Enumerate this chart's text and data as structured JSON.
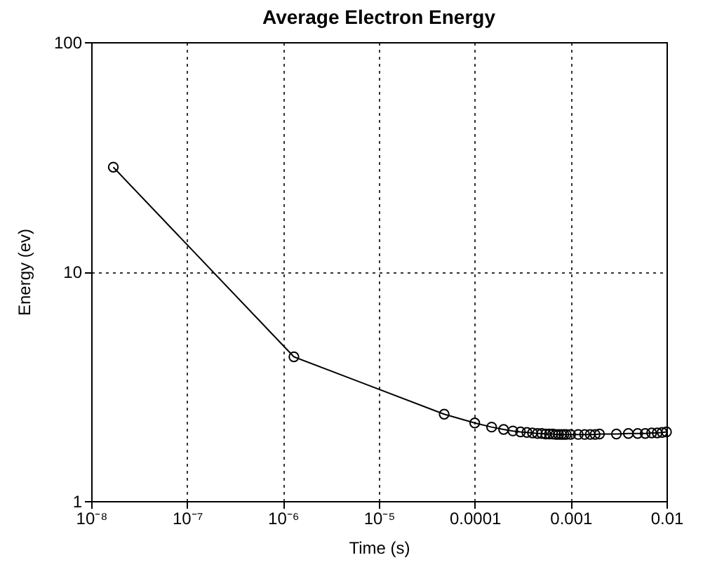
{
  "chart_data": {
    "type": "line",
    "title": "Average Electron Energy",
    "xlabel": "Time (s)",
    "ylabel": "Energy (ev)",
    "x": [
      1.7e-08,
      1.3e-06,
      4.8e-05,
      0.0001,
      0.00015,
      0.0002,
      0.00025,
      0.0003,
      0.00035,
      0.0004,
      0.00045,
      0.0005,
      0.00055,
      0.0006,
      0.00065,
      0.0007,
      0.00075,
      0.0008,
      0.00085,
      0.0009,
      0.001,
      0.0012,
      0.0014,
      0.0016,
      0.0018,
      0.002,
      0.003,
      0.004,
      0.005,
      0.006,
      0.007,
      0.008,
      0.009,
      0.01
    ],
    "series": [
      {
        "color": "#000000",
        "values": [
          28.5,
          4.25,
          2.39,
          2.19,
          2.1,
          2.05,
          2.02,
          2.0,
          1.99,
          1.98,
          1.97,
          1.97,
          1.96,
          1.96,
          1.96,
          1.95,
          1.95,
          1.95,
          1.95,
          1.95,
          1.95,
          1.95,
          1.95,
          1.95,
          1.95,
          1.96,
          1.96,
          1.97,
          1.97,
          1.97,
          1.98,
          1.98,
          1.99,
          2.0
        ]
      }
    ],
    "log": "xy",
    "xlim": [
      1e-08,
      0.01
    ],
    "ylim": [
      1,
      100
    ],
    "xticks": [
      {
        "value": 1e-08,
        "label": "10⁻⁸"
      },
      {
        "value": 1e-07,
        "label": "10⁻⁷"
      },
      {
        "value": 1e-06,
        "label": "10⁻⁶"
      },
      {
        "value": 1e-05,
        "label": "10⁻⁵"
      },
      {
        "value": 0.0001,
        "label": "0.0001"
      },
      {
        "value": 0.001,
        "label": "0.001"
      },
      {
        "value": 0.01,
        "label": "0.01"
      }
    ],
    "yticks": [
      1,
      10,
      100
    ],
    "grid": true,
    "marker": "circle",
    "line_style": "solid"
  }
}
